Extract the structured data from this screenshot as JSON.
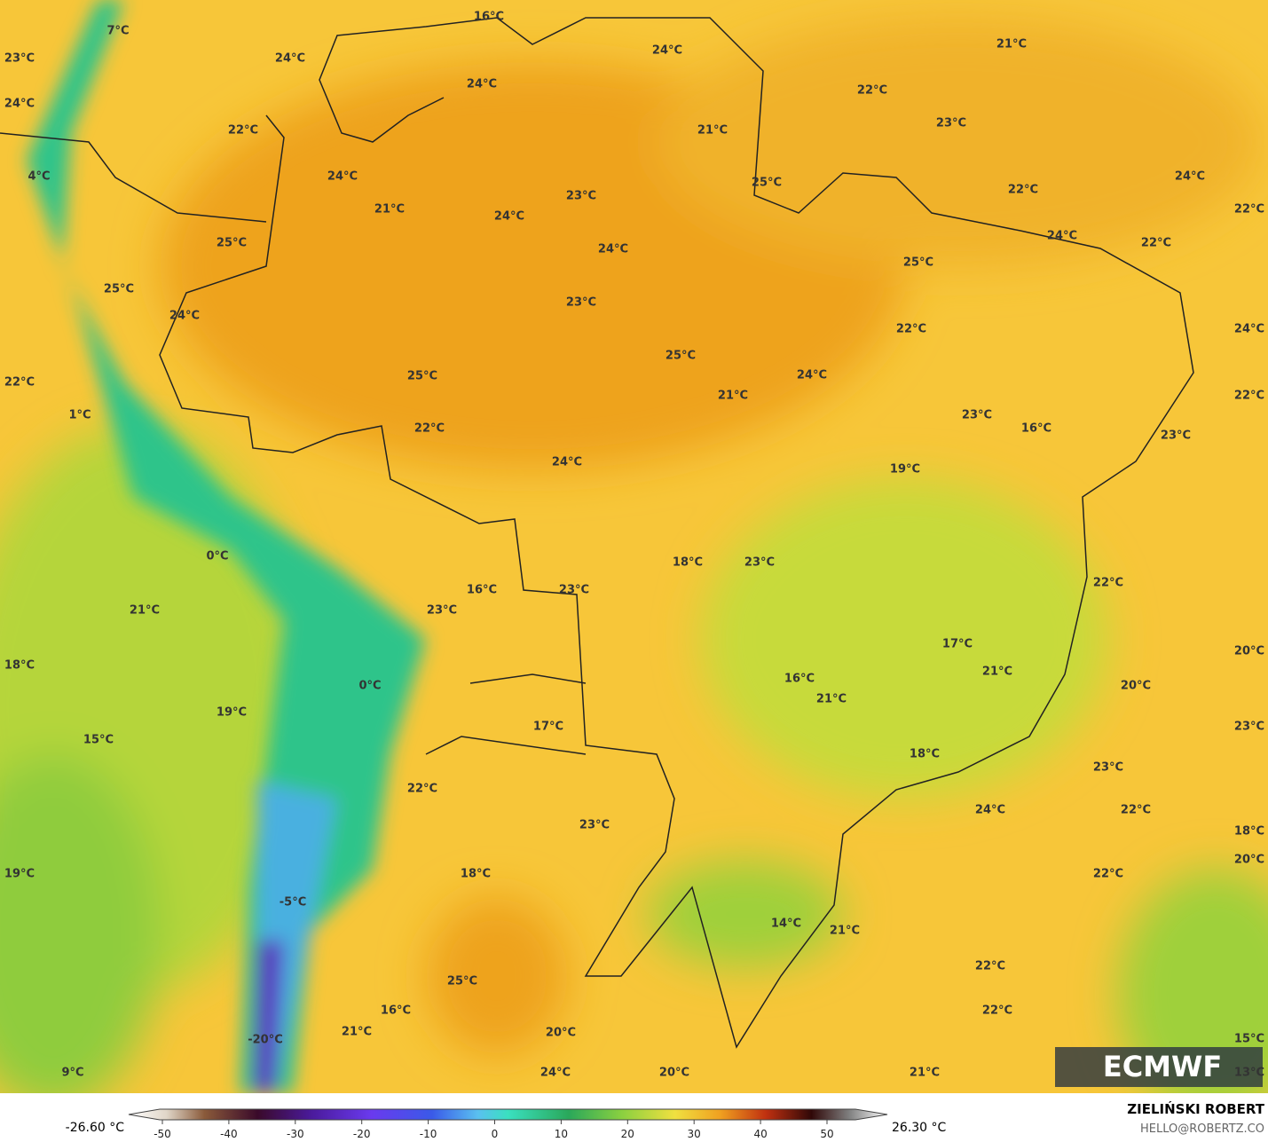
{
  "map": {
    "labels": [
      "16°C",
      "7°C",
      "23°C",
      "24°C",
      "24°C",
      "21°C",
      "24°C",
      "22°C",
      "24°C",
      "23°C",
      "22°C",
      "21°C",
      "4°C",
      "24°C",
      "25°C",
      "22°C",
      "24°C",
      "23°C",
      "21°C",
      "22°C",
      "24°C",
      "25°C",
      "24°C",
      "22°C",
      "24°C",
      "25°C",
      "25°C",
      "23°C",
      "24°C",
      "22°C",
      "24°C",
      "25°C",
      "25°C",
      "24°C",
      "22°C",
      "21°C",
      "22°C",
      "1°C",
      "23°C",
      "16°C",
      "22°C",
      "23°C",
      "24°C",
      "19°C",
      "0°C",
      "18°C",
      "23°C",
      "22°C",
      "16°C",
      "23°C",
      "21°C",
      "23°C",
      "17°C",
      "20°C",
      "18°C",
      "0°C",
      "16°C",
      "21°C",
      "20°C",
      "21°C",
      "19°C",
      "15°C",
      "17°C",
      "23°C",
      "18°C",
      "23°C",
      "22°C",
      "24°C",
      "22°C",
      "23°C",
      "18°C",
      "20°C",
      "19°C",
      "18°C",
      "22°C",
      "-5°C",
      "14°C",
      "21°C",
      "22°C",
      "25°C",
      "16°C",
      "22°C",
      "21°C",
      "20°C",
      "15°C",
      "-20°C",
      "9°C",
      "24°C",
      "20°C",
      "21°C",
      "13°C"
    ]
  },
  "colorbar": {
    "range": [
      -50,
      50
    ],
    "ticks": [
      -50,
      -40,
      -30,
      -20,
      -10,
      0,
      10,
      20,
      30,
      40,
      50
    ],
    "min_label": "-26.60 °C",
    "max_label": "26.30 °C"
  },
  "credit": {
    "author": "ZIELIŃSKI ROBERT",
    "email": "HELLO@ROBERTZ.CO"
  },
  "logo": "ECMWF"
}
